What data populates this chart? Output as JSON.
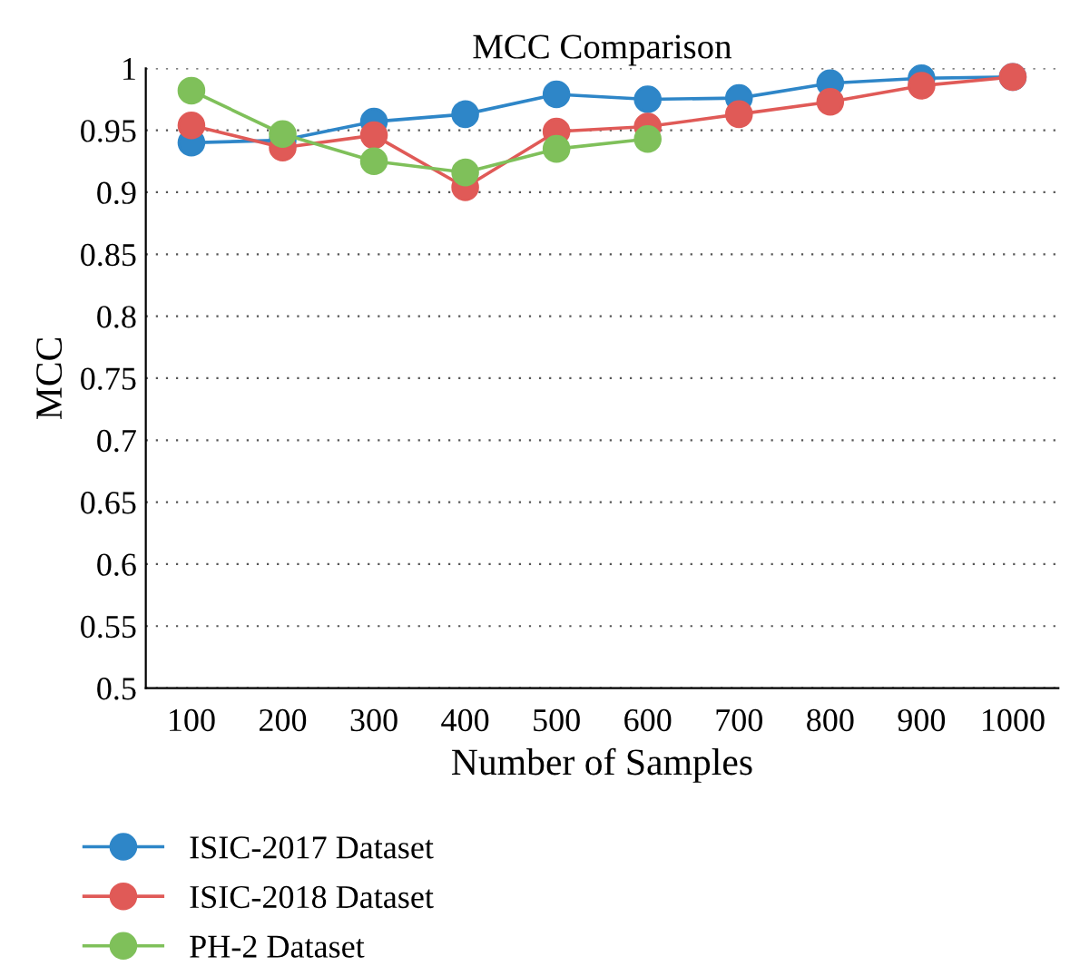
{
  "chart_data": {
    "type": "line",
    "title": "MCC Comparison",
    "xlabel": "Number of Samples",
    "ylabel": "MCC",
    "categories": [
      "100",
      "200",
      "300",
      "400",
      "500",
      "600",
      "700",
      "800",
      "900",
      "1000"
    ],
    "series": [
      {
        "name": "ISIC-2017 Dataset",
        "color": "#2e86c8",
        "values": [
          0.94,
          0.942,
          0.957,
          0.963,
          0.979,
          0.975,
          0.976,
          0.988,
          0.992,
          0.993
        ]
      },
      {
        "name": "ISIC-2018 Dataset",
        "color": "#e05a57",
        "values": [
          0.954,
          0.936,
          0.946,
          0.904,
          0.949,
          0.953,
          0.963,
          0.973,
          0.986,
          0.993
        ]
      },
      {
        "name": "PH-2 Dataset",
        "color": "#7fc05a",
        "values": [
          0.982,
          0.947,
          0.925,
          0.916,
          0.935,
          0.943,
          null,
          null,
          null,
          null
        ]
      }
    ],
    "ylim": [
      0.5,
      1
    ],
    "yticks": [
      0.5,
      0.55,
      0.6,
      0.65,
      0.7,
      0.75,
      0.8,
      0.85,
      0.9,
      0.95,
      1
    ],
    "grid": "y",
    "legend": "bottom",
    "marker": "circle",
    "line_style": "solid"
  }
}
